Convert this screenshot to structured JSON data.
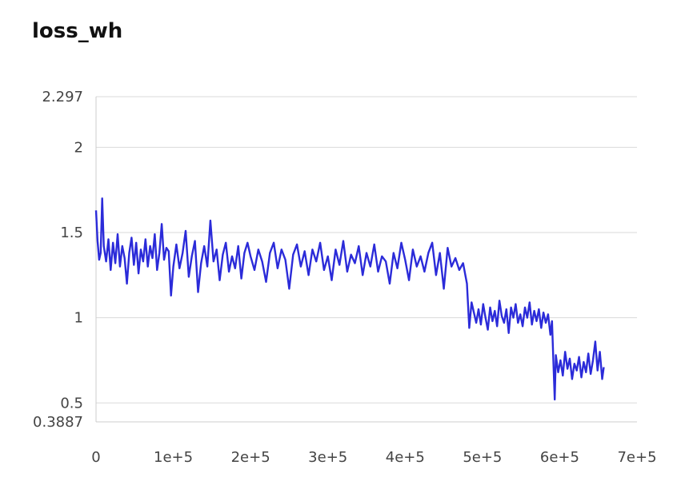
{
  "chart_data": {
    "type": "line",
    "title": "loss_wh",
    "xlabel": "",
    "ylabel": "",
    "xlim": [
      0,
      700000
    ],
    "ylim": [
      0.3887,
      2.297
    ],
    "grid": true,
    "legend": "none",
    "line_color": "#2b2bd9",
    "x_ticks": [
      0,
      100000,
      200000,
      300000,
      400000,
      500000,
      600000,
      700000
    ],
    "x_tick_labels": [
      "0",
      "1e+5",
      "2e+5",
      "3e+5",
      "4e+5",
      "5e+5",
      "6e+5",
      "7e+5"
    ],
    "y_ticks": [
      0.3887,
      0.5,
      1,
      1.5,
      2,
      2.297
    ],
    "y_tick_labels": [
      "0.3887",
      "0.5",
      "1",
      "1.5",
      "2",
      "2.297"
    ],
    "series": [
      {
        "values": [
          [
            0,
            1.63
          ],
          [
            2000,
            1.45
          ],
          [
            4000,
            1.34
          ],
          [
            6000,
            1.38
          ],
          [
            8000,
            1.7
          ],
          [
            10000,
            1.42
          ],
          [
            13000,
            1.33
          ],
          [
            16000,
            1.46
          ],
          [
            19000,
            1.28
          ],
          [
            22000,
            1.44
          ],
          [
            25000,
            1.32
          ],
          [
            28000,
            1.49
          ],
          [
            31000,
            1.3
          ],
          [
            34000,
            1.42
          ],
          [
            37000,
            1.35
          ],
          [
            40000,
            1.2
          ],
          [
            43000,
            1.38
          ],
          [
            46000,
            1.47
          ],
          [
            49000,
            1.31
          ],
          [
            52000,
            1.44
          ],
          [
            55000,
            1.26
          ],
          [
            58000,
            1.4
          ],
          [
            61000,
            1.33
          ],
          [
            64000,
            1.46
          ],
          [
            67000,
            1.3
          ],
          [
            70000,
            1.42
          ],
          [
            73000,
            1.35
          ],
          [
            76000,
            1.49
          ],
          [
            79000,
            1.28
          ],
          [
            82000,
            1.38
          ],
          [
            85000,
            1.55
          ],
          [
            88000,
            1.34
          ],
          [
            91000,
            1.41
          ],
          [
            94000,
            1.39
          ],
          [
            97000,
            1.13
          ],
          [
            100000,
            1.3
          ],
          [
            104000,
            1.43
          ],
          [
            108000,
            1.29
          ],
          [
            112000,
            1.38
          ],
          [
            116000,
            1.51
          ],
          [
            120000,
            1.24
          ],
          [
            124000,
            1.36
          ],
          [
            128000,
            1.45
          ],
          [
            132000,
            1.15
          ],
          [
            136000,
            1.32
          ],
          [
            140000,
            1.42
          ],
          [
            144000,
            1.3
          ],
          [
            148000,
            1.57
          ],
          [
            152000,
            1.33
          ],
          [
            156000,
            1.4
          ],
          [
            160000,
            1.22
          ],
          [
            164000,
            1.37
          ],
          [
            168000,
            1.44
          ],
          [
            172000,
            1.27
          ],
          [
            176000,
            1.36
          ],
          [
            180000,
            1.29
          ],
          [
            184000,
            1.42
          ],
          [
            188000,
            1.23
          ],
          [
            192000,
            1.38
          ],
          [
            196000,
            1.44
          ],
          [
            200000,
            1.36
          ],
          [
            205000,
            1.28
          ],
          [
            210000,
            1.4
          ],
          [
            215000,
            1.33
          ],
          [
            220000,
            1.21
          ],
          [
            225000,
            1.38
          ],
          [
            230000,
            1.44
          ],
          [
            235000,
            1.29
          ],
          [
            240000,
            1.4
          ],
          [
            245000,
            1.34
          ],
          [
            250000,
            1.17
          ],
          [
            255000,
            1.37
          ],
          [
            260000,
            1.43
          ],
          [
            265000,
            1.3
          ],
          [
            270000,
            1.39
          ],
          [
            275000,
            1.25
          ],
          [
            280000,
            1.4
          ],
          [
            285000,
            1.33
          ],
          [
            290000,
            1.44
          ],
          [
            295000,
            1.28
          ],
          [
            300000,
            1.36
          ],
          [
            305000,
            1.22
          ],
          [
            310000,
            1.4
          ],
          [
            315000,
            1.31
          ],
          [
            320000,
            1.45
          ],
          [
            325000,
            1.27
          ],
          [
            330000,
            1.37
          ],
          [
            335000,
            1.32
          ],
          [
            340000,
            1.42
          ],
          [
            345000,
            1.25
          ],
          [
            350000,
            1.38
          ],
          [
            355000,
            1.3
          ],
          [
            360000,
            1.43
          ],
          [
            365000,
            1.27
          ],
          [
            370000,
            1.36
          ],
          [
            375000,
            1.33
          ],
          [
            380000,
            1.2
          ],
          [
            385000,
            1.38
          ],
          [
            390000,
            1.29
          ],
          [
            395000,
            1.44
          ],
          [
            400000,
            1.34
          ],
          [
            405000,
            1.22
          ],
          [
            410000,
            1.4
          ],
          [
            415000,
            1.3
          ],
          [
            420000,
            1.36
          ],
          [
            425000,
            1.27
          ],
          [
            430000,
            1.38
          ],
          [
            435000,
            1.44
          ],
          [
            440000,
            1.25
          ],
          [
            445000,
            1.38
          ],
          [
            450000,
            1.17
          ],
          [
            455000,
            1.41
          ],
          [
            460000,
            1.3
          ],
          [
            465000,
            1.35
          ],
          [
            470000,
            1.28
          ],
          [
            475000,
            1.32
          ],
          [
            480000,
            1.2
          ],
          [
            483000,
            0.94
          ],
          [
            486000,
            1.09
          ],
          [
            489000,
            1.03
          ],
          [
            492000,
            0.97
          ],
          [
            495000,
            1.05
          ],
          [
            498000,
            0.96
          ],
          [
            501000,
            1.08
          ],
          [
            504000,
            1.0
          ],
          [
            507000,
            0.93
          ],
          [
            510000,
            1.06
          ],
          [
            513000,
            0.98
          ],
          [
            516000,
            1.04
          ],
          [
            519000,
            0.95
          ],
          [
            522000,
            1.1
          ],
          [
            525000,
            1.01
          ],
          [
            528000,
            0.97
          ],
          [
            531000,
            1.05
          ],
          [
            534000,
            0.91
          ],
          [
            537000,
            1.06
          ],
          [
            540000,
            1.0
          ],
          [
            543000,
            1.08
          ],
          [
            546000,
            0.97
          ],
          [
            549000,
            1.02
          ],
          [
            552000,
            0.95
          ],
          [
            555000,
            1.06
          ],
          [
            558000,
            1.0
          ],
          [
            561000,
            1.09
          ],
          [
            564000,
            0.96
          ],
          [
            567000,
            1.04
          ],
          [
            570000,
            0.98
          ],
          [
            573000,
            1.05
          ],
          [
            576000,
            0.94
          ],
          [
            579000,
            1.03
          ],
          [
            582000,
            0.97
          ],
          [
            585000,
            1.02
          ],
          [
            588000,
            0.9
          ],
          [
            590000,
            0.98
          ],
          [
            592000,
            0.72
          ],
          [
            593500,
            0.52
          ],
          [
            595000,
            0.78
          ],
          [
            598000,
            0.68
          ],
          [
            601000,
            0.75
          ],
          [
            604000,
            0.66
          ],
          [
            607000,
            0.8
          ],
          [
            610000,
            0.7
          ],
          [
            613000,
            0.76
          ],
          [
            616000,
            0.64
          ],
          [
            619000,
            0.73
          ],
          [
            622000,
            0.69
          ],
          [
            625000,
            0.77
          ],
          [
            628000,
            0.65
          ],
          [
            631000,
            0.74
          ],
          [
            634000,
            0.68
          ],
          [
            637000,
            0.79
          ],
          [
            640000,
            0.67
          ],
          [
            643000,
            0.75
          ],
          [
            646000,
            0.86
          ],
          [
            649000,
            0.69
          ],
          [
            652000,
            0.8
          ],
          [
            655000,
            0.64
          ],
          [
            657000,
            0.71
          ]
        ]
      }
    ]
  }
}
